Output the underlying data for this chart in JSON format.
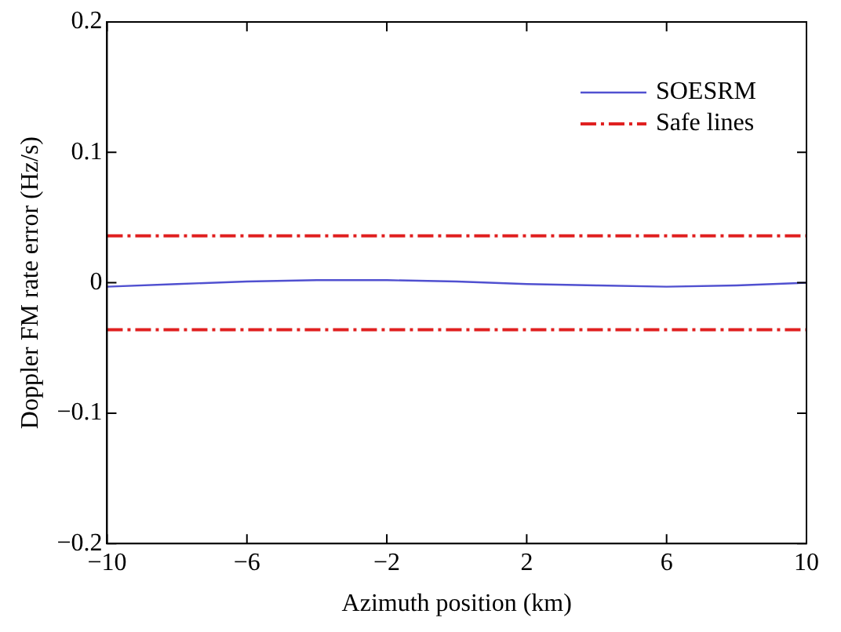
{
  "chart_data": {
    "type": "line",
    "xlabel": "Azimuth position (km)",
    "ylabel": "Doppler FM rate error (Hz/s)",
    "x": [
      -10,
      -8,
      -6,
      -4,
      -2,
      0,
      2,
      4,
      6,
      8,
      10
    ],
    "series": [
      {
        "name": "SOESRM",
        "color": "#5050d0",
        "values": [
          -0.003,
          -0.001,
          0.001,
          0.002,
          0.002,
          0.001,
          -0.001,
          -0.002,
          -0.003,
          -0.002,
          0
        ]
      }
    ],
    "ref_lines": [
      {
        "axis": "y",
        "value": 0.036,
        "label": "Safe lines",
        "color": "#e02020",
        "line_style": "dashed"
      },
      {
        "axis": "y",
        "value": -0.036,
        "color": "#e02020",
        "line_style": "dashed"
      }
    ],
    "xlim": [
      -10,
      10
    ],
    "xticks": [
      -10,
      -6,
      -2,
      2,
      6,
      10
    ],
    "ylim": [
      -0.2,
      0.2
    ],
    "yticks": [
      -0.2,
      -0.1,
      0,
      0.1,
      0.2
    ],
    "grid": false,
    "legend": "top right",
    "marker": "none",
    "line_style": "solid"
  }
}
